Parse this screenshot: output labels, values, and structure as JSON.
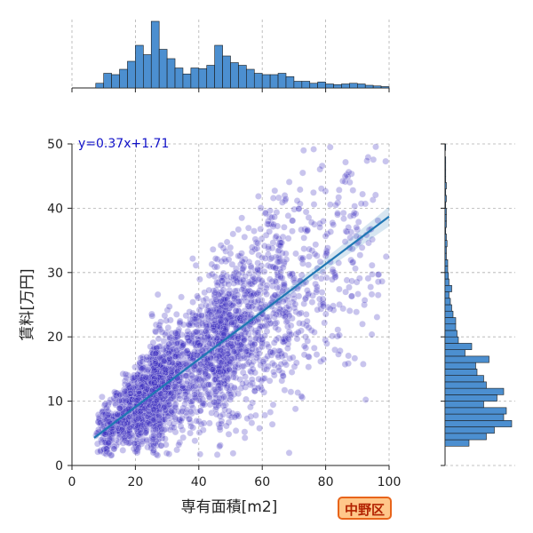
{
  "chart_data": {
    "type": "scatter",
    "title": "",
    "xlabel": "専有面積[m2]",
    "ylabel": "賃料[万円]",
    "xlim": [
      0,
      100
    ],
    "ylim": [
      0,
      50
    ],
    "x_ticks": [
      "0",
      "20",
      "40",
      "60",
      "80",
      "100"
    ],
    "y_ticks": [
      "0",
      "10",
      "20",
      "30",
      "40",
      "50"
    ],
    "grid": true,
    "regression": {
      "slope": 0.37,
      "intercept": 1.71,
      "x_range": [
        7,
        100
      ],
      "equation_label": "y=0.37x+1.71"
    },
    "ward_label": "中野区",
    "marginal_x_histogram": {
      "bin_width": 2.5,
      "x_start": 7.5,
      "relative_heights": [
        0.07,
        0.22,
        0.2,
        0.28,
        0.4,
        0.64,
        0.5,
        1.0,
        0.58,
        0.44,
        0.3,
        0.21,
        0.3,
        0.29,
        0.34,
        0.64,
        0.48,
        0.38,
        0.34,
        0.28,
        0.22,
        0.2,
        0.2,
        0.22,
        0.17,
        0.1,
        0.1,
        0.07,
        0.09,
        0.06,
        0.05,
        0.06,
        0.07,
        0.06,
        0.04,
        0.03,
        0.02,
        0.02,
        0.01,
        0.01
      ]
    },
    "marginal_y_histogram": {
      "bin_width": 1.0,
      "y_start": 3,
      "relative_widths": [
        0.36,
        0.62,
        0.74,
        1.0,
        0.88,
        0.92,
        0.58,
        0.78,
        0.88,
        0.62,
        0.58,
        0.48,
        0.46,
        0.66,
        0.3,
        0.4,
        0.2,
        0.18,
        0.16,
        0.16,
        0.12,
        0.1,
        0.08,
        0.06,
        0.1,
        0.06,
        0.05,
        0.04,
        0.04,
        0.02,
        0.02,
        0.03,
        0.02,
        0.01,
        0.02,
        0.02,
        0.02,
        0.01,
        0.02,
        0.01,
        0.02,
        0.01,
        0.01,
        0.01,
        0.01,
        0.0,
        0.01
      ]
    },
    "series": [
      {
        "name": "",
        "n_points": 3000,
        "color": "#3a2cc0",
        "fit_color": "#1f77b4",
        "hist_color": "#4c8fd0"
      }
    ]
  }
}
